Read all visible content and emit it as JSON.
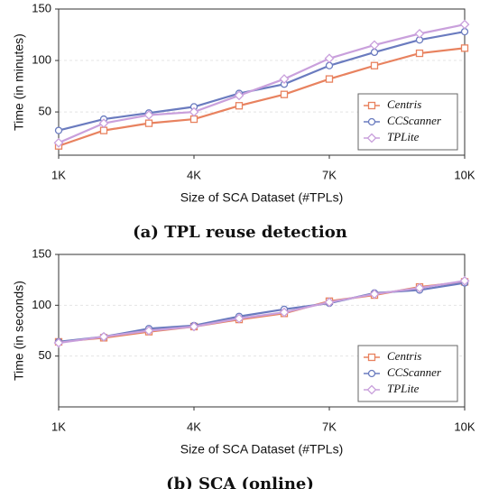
{
  "chart_data": [
    {
      "type": "line",
      "caption": "(a) TPL reuse detection",
      "xlabel": "Size of SCA Dataset (#TPLs)",
      "ylabel": "Time (in minutes)",
      "x": [
        1,
        2,
        3,
        4,
        5,
        6,
        7,
        8,
        9,
        10
      ],
      "xlim": [
        1,
        10
      ],
      "xticks": [
        {
          "value": 1,
          "label": "1K"
        },
        {
          "value": 4,
          "label": "4K"
        },
        {
          "value": 7,
          "label": "7K"
        },
        {
          "value": 10,
          "label": "10K"
        }
      ],
      "ylim": [
        8,
        150
      ],
      "yticks": [
        50,
        100,
        150
      ],
      "grid": true,
      "legend": "lower right",
      "series": [
        {
          "name": "Centris",
          "color": "#e8825f",
          "marker": "square",
          "values": [
            17,
            32,
            39,
            43,
            56,
            67,
            82,
            95,
            107,
            112
          ]
        },
        {
          "name": "CCScanner",
          "color": "#6a7bbf",
          "marker": "circle",
          "values": [
            32,
            43,
            49,
            55,
            68,
            77,
            95,
            108,
            120,
            128
          ]
        },
        {
          "name": "TPLite",
          "color": "#c9a0dc",
          "marker": "diamond",
          "values": [
            20,
            39,
            47,
            50,
            66,
            82,
            102,
            115,
            126,
            135
          ]
        }
      ]
    },
    {
      "type": "line",
      "caption": "(b) SCA (online)",
      "xlabel": "Size of SCA Dataset (#TPLs)",
      "ylabel": "Time (in seconds)",
      "x": [
        1,
        2,
        3,
        4,
        5,
        6,
        7,
        8,
        9,
        10
      ],
      "xlim": [
        1,
        10
      ],
      "xticks": [
        {
          "value": 1,
          "label": "1K"
        },
        {
          "value": 4,
          "label": "4K"
        },
        {
          "value": 7,
          "label": "7K"
        },
        {
          "value": 10,
          "label": "10K"
        }
      ],
      "ylim": [
        0,
        150
      ],
      "yticks": [
        50,
        100,
        150
      ],
      "grid": true,
      "legend": "lower right",
      "series": [
        {
          "name": "Centris",
          "color": "#e8825f",
          "marker": "square",
          "values": [
            64,
            68,
            74,
            79,
            86,
            92,
            104,
            110,
            118,
            123
          ]
        },
        {
          "name": "CCScanner",
          "color": "#6a7bbf",
          "marker": "circle",
          "values": [
            64,
            69,
            77,
            80,
            89,
            96,
            102,
            112,
            115,
            122
          ]
        },
        {
          "name": "TPLite",
          "color": "#c9a0dc",
          "marker": "diamond",
          "values": [
            63,
            69,
            75,
            79,
            87,
            93,
            103,
            111,
            117,
            124
          ]
        }
      ]
    }
  ]
}
